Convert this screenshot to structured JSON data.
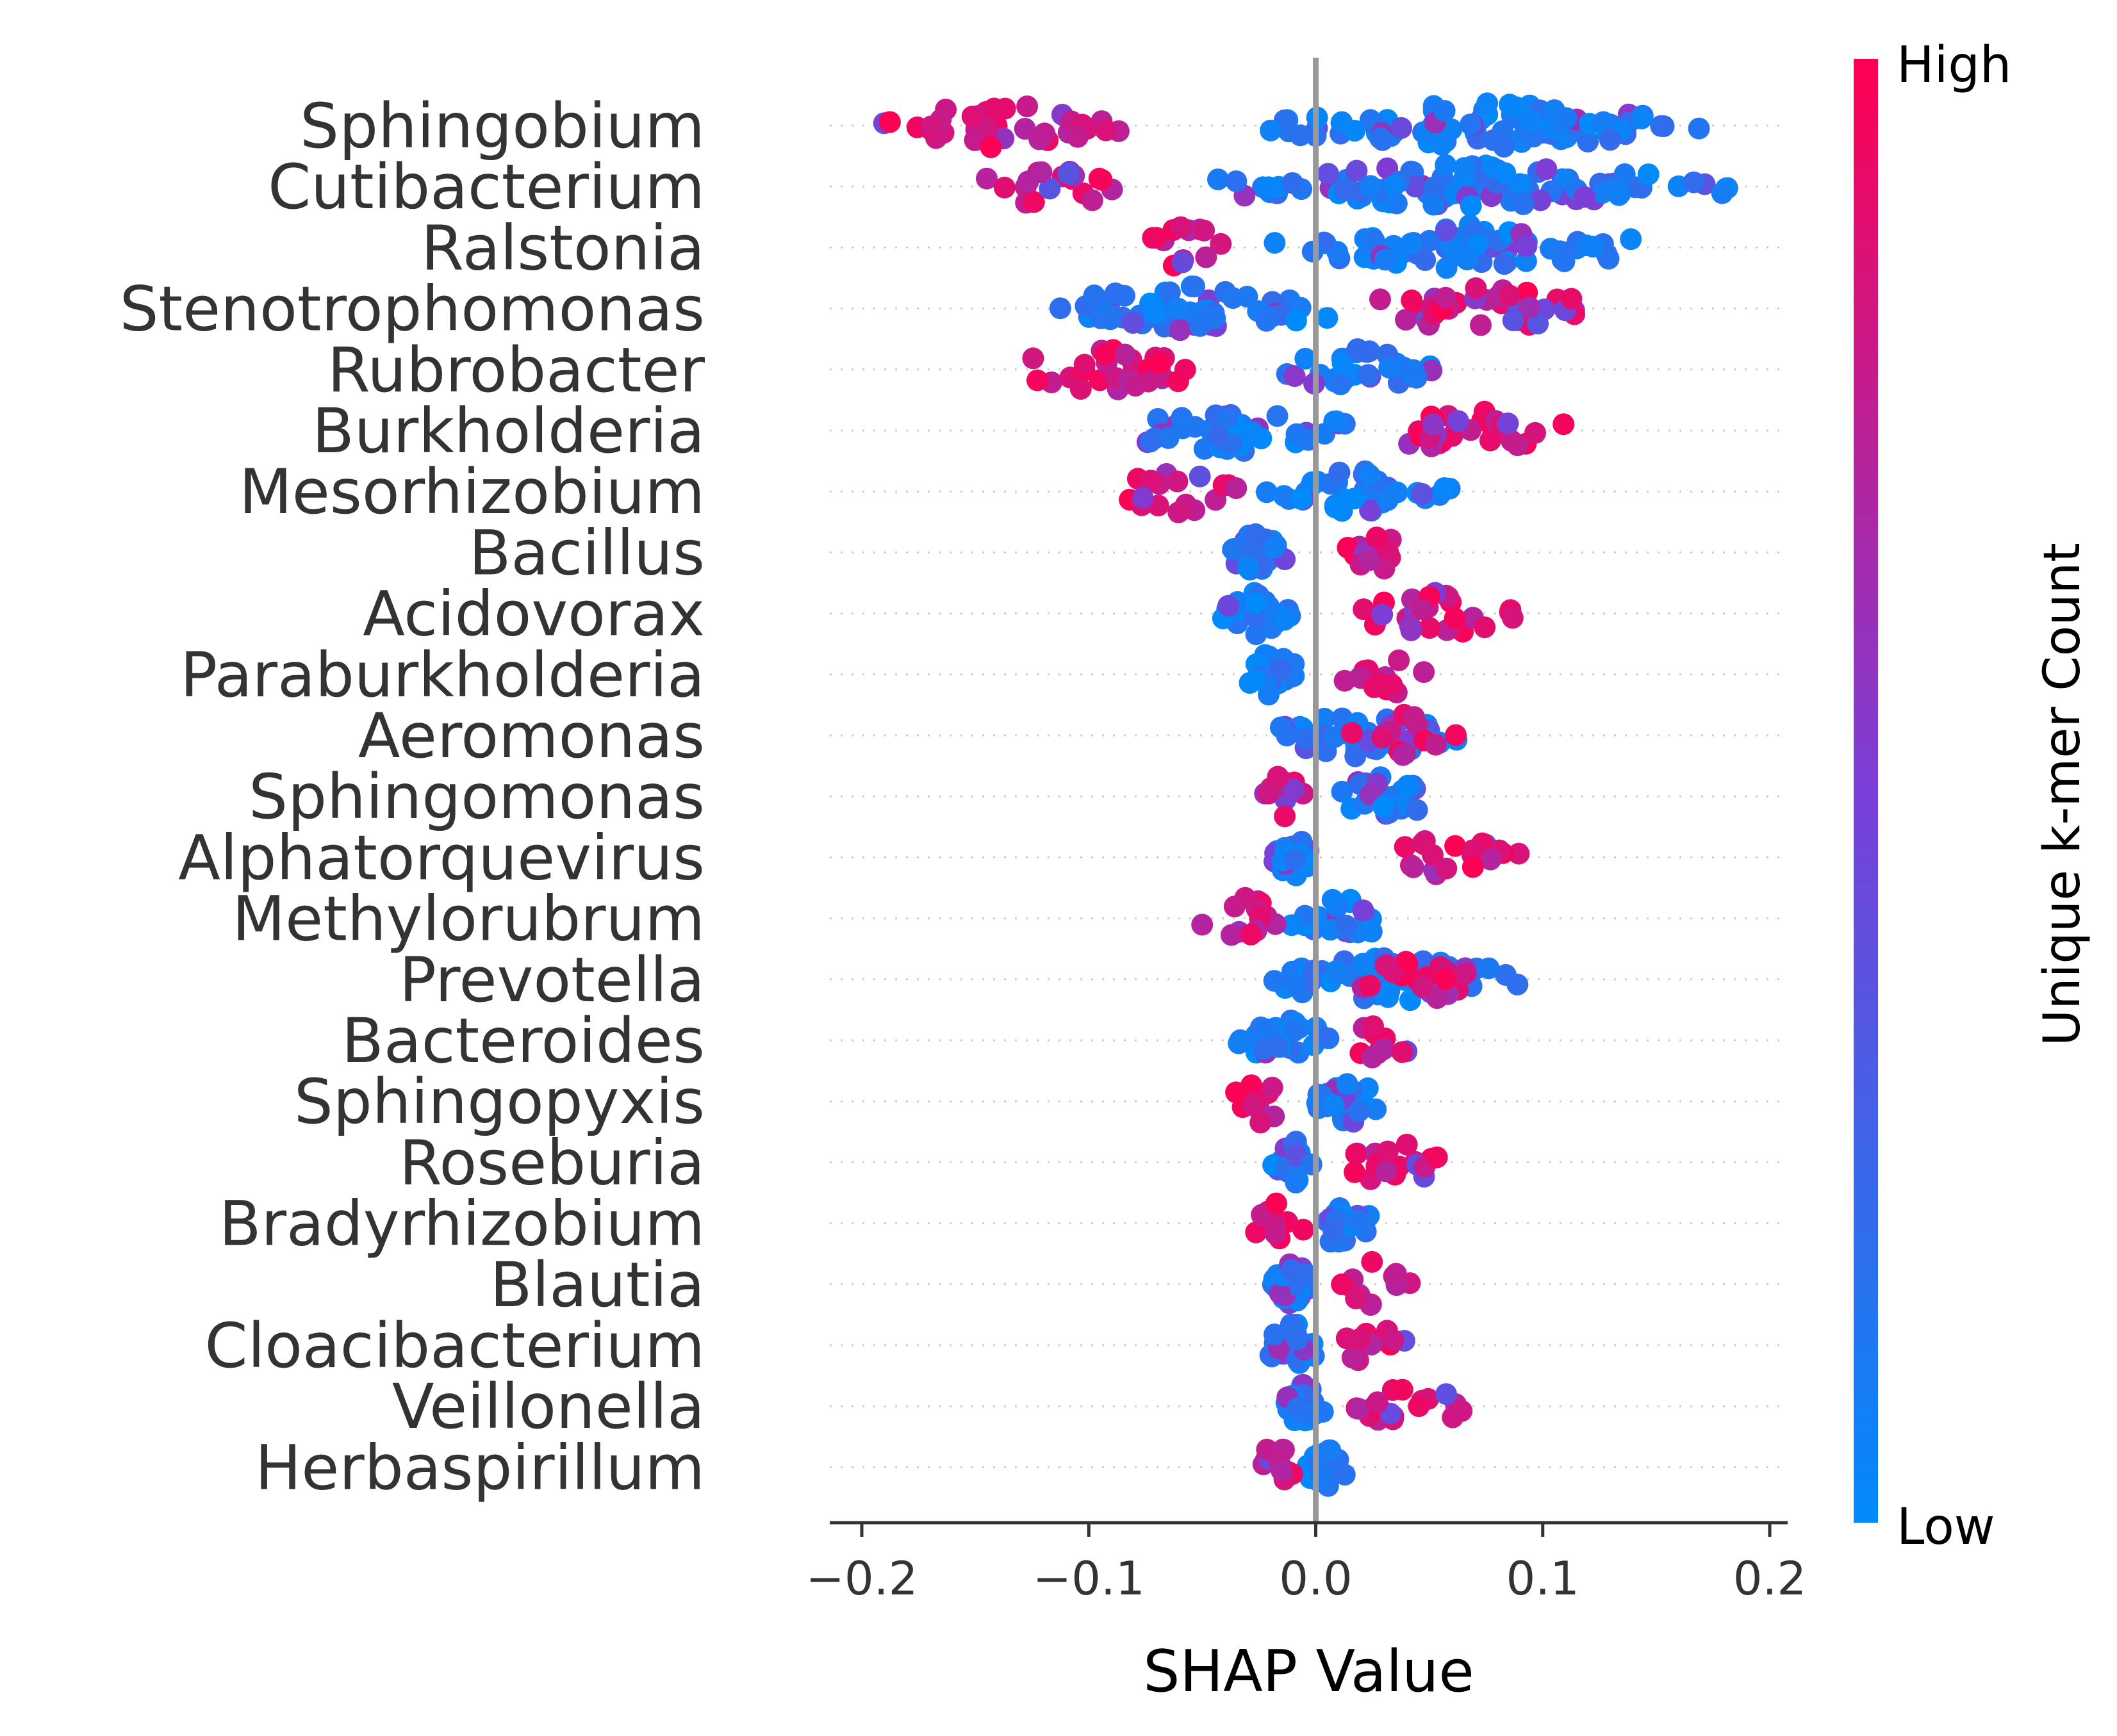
{
  "chart_data": {
    "type": "scatter",
    "subtype": "beeswarm",
    "title": "",
    "xlabel": "SHAP Value",
    "ylabel": "",
    "xlim": [
      -0.2,
      0.2
    ],
    "x_ticks": [
      "−0.2",
      "−0.1",
      "0.0",
      "0.1",
      "0.2"
    ],
    "x_tick_values": [
      -0.2,
      -0.1,
      0.0,
      0.1,
      0.2
    ],
    "reference_line_x": 0.0,
    "colorbar": {
      "label": "Unique k-mer Count",
      "high": "High",
      "low": "Low",
      "low_color": "#008bfb",
      "high_color": "#ff0052"
    },
    "features": [
      {
        "name": "Sphingobium",
        "low_x": [
          -0.04,
          0.19
        ],
        "high_x": [
          -0.2,
          -0.08
        ]
      },
      {
        "name": "Cutibacterium",
        "low_x": [
          -0.06,
          0.19
        ],
        "high_x": [
          -0.15,
          -0.08
        ]
      },
      {
        "name": "Ralstonia",
        "low_x": [
          -0.02,
          0.155
        ],
        "high_x": [
          -0.08,
          -0.035
        ]
      },
      {
        "name": "Stenotrophomonas",
        "low_x": [
          -0.13,
          0.02
        ],
        "high_x": [
          0.01,
          0.13
        ]
      },
      {
        "name": "Rubrobacter",
        "low_x": [
          -0.02,
          0.06
        ],
        "high_x": [
          -0.15,
          -0.04
        ]
      },
      {
        "name": "Burkholderia",
        "low_x": [
          -0.095,
          0.02
        ],
        "high_x": [
          0.02,
          0.115
        ]
      },
      {
        "name": "Mesorhizobium",
        "low_x": [
          -0.03,
          0.07
        ],
        "high_x": [
          -0.09,
          -0.03
        ]
      },
      {
        "name": "Bacillus",
        "low_x": [
          -0.04,
          -0.01
        ],
        "high_x": [
          0.01,
          0.04
        ]
      },
      {
        "name": "Acidovorax",
        "low_x": [
          -0.045,
          -0.01
        ],
        "high_x": [
          0.01,
          0.095
        ]
      },
      {
        "name": "Paraburkholderia",
        "low_x": [
          -0.035,
          -0.005
        ],
        "high_x": [
          0.01,
          0.055
        ]
      },
      {
        "name": "Aeromonas",
        "low_x": [
          -0.03,
          0.075
        ],
        "high_x": [
          0.01,
          0.065
        ]
      },
      {
        "name": "Sphingomonas",
        "low_x": [
          0.005,
          0.055
        ],
        "high_x": [
          -0.025,
          -0.005
        ]
      },
      {
        "name": "Alphatorquevirus",
        "low_x": [
          -0.02,
          0.0
        ],
        "high_x": [
          0.025,
          0.095
        ]
      },
      {
        "name": "Methylorubrum",
        "low_x": [
          -0.015,
          0.035
        ],
        "high_x": [
          -0.055,
          -0.01
        ]
      },
      {
        "name": "Prevotella",
        "low_x": [
          -0.035,
          0.1
        ],
        "high_x": [
          0.01,
          0.09
        ]
      },
      {
        "name": "Bacteroides",
        "low_x": [
          -0.04,
          0.01
        ],
        "high_x": [
          0.01,
          0.045
        ]
      },
      {
        "name": "Sphingopyxis",
        "low_x": [
          0.0,
          0.03
        ],
        "high_x": [
          -0.04,
          -0.01
        ]
      },
      {
        "name": "Roseburia",
        "low_x": [
          -0.02,
          0.0
        ],
        "high_x": [
          0.005,
          0.065
        ]
      },
      {
        "name": "Bradyrhizobium",
        "low_x": [
          -0.005,
          0.025
        ],
        "high_x": [
          -0.03,
          -0.005
        ]
      },
      {
        "name": "Blautia",
        "low_x": [
          -0.02,
          0.0
        ],
        "high_x": [
          0.005,
          0.045
        ]
      },
      {
        "name": "Cloacibacterium",
        "low_x": [
          -0.025,
          0.005
        ],
        "high_x": [
          0.01,
          0.04
        ]
      },
      {
        "name": "Veillonella",
        "low_x": [
          -0.015,
          0.005
        ],
        "high_x": [
          0.005,
          0.07
        ]
      },
      {
        "name": "Herbaspirillum",
        "low_x": [
          -0.005,
          0.015
        ],
        "high_x": [
          -0.03,
          -0.005
        ]
      }
    ]
  }
}
